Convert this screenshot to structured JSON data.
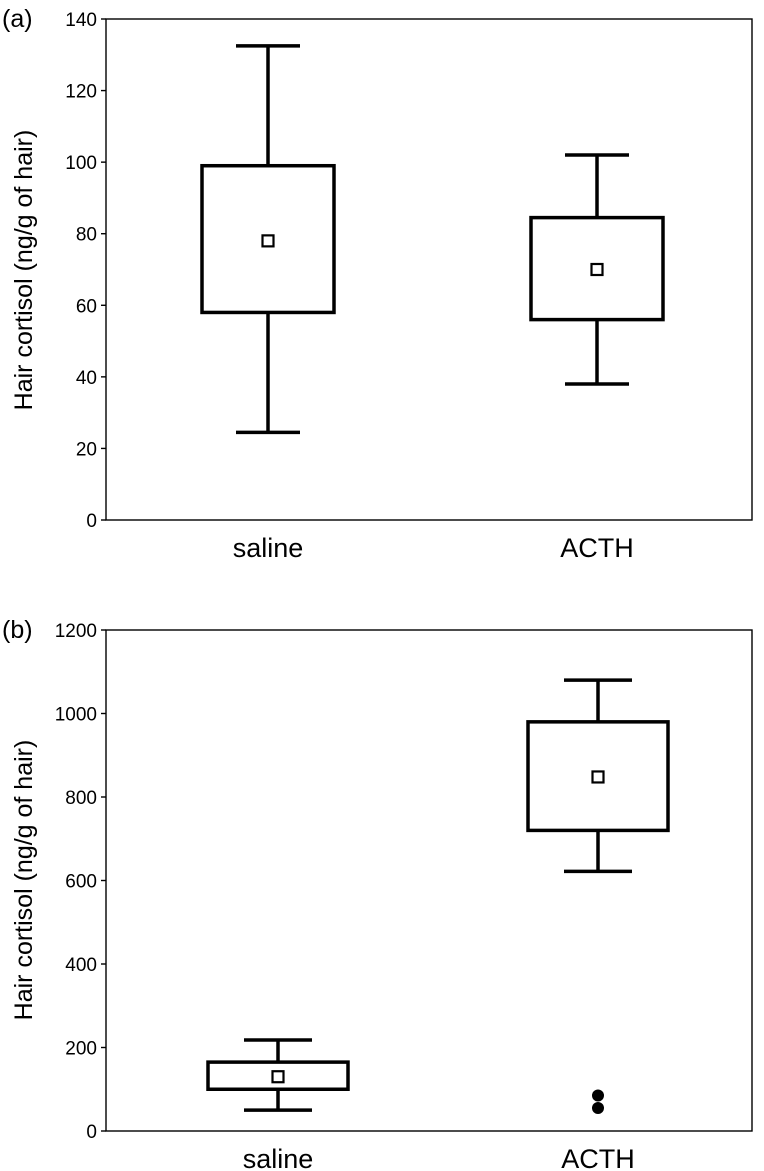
{
  "chart_data": [
    {
      "type": "box",
      "panel_label": "(a)",
      "title": "",
      "xlabel": "",
      "ylabel": "Hair cortisol (ng/g of hair)",
      "ylim": [
        0,
        140
      ],
      "yticks": [
        0,
        20,
        40,
        60,
        80,
        100,
        120,
        140
      ],
      "categories": [
        "saline",
        "ACTH"
      ],
      "boxes": [
        {
          "category": "saline",
          "whisker_low": 24.5,
          "q1": 58,
          "mean": 78,
          "q3": 99,
          "whisker_high": 132.5,
          "outliers": []
        },
        {
          "category": "ACTH",
          "whisker_low": 38,
          "q1": 56,
          "mean": 70,
          "q3": 84.5,
          "whisker_high": 102,
          "outliers": []
        }
      ]
    },
    {
      "type": "box",
      "panel_label": "(b)",
      "title": "",
      "xlabel": "",
      "ylabel": "Hair cortisol (ng/g of hair)",
      "ylim": [
        0,
        1200
      ],
      "yticks": [
        0,
        200,
        400,
        600,
        800,
        1000,
        1200
      ],
      "categories": [
        "saline",
        "ACTH"
      ],
      "boxes": [
        {
          "category": "saline",
          "whisker_low": 50,
          "q1": 100,
          "mean": 130,
          "q3": 165,
          "whisker_high": 218,
          "outliers": []
        },
        {
          "category": "ACTH",
          "whisker_low": 622,
          "q1": 720,
          "mean": 848,
          "q3": 980,
          "whisker_high": 1080,
          "outliers": [
            85,
            55
          ]
        }
      ]
    }
  ]
}
